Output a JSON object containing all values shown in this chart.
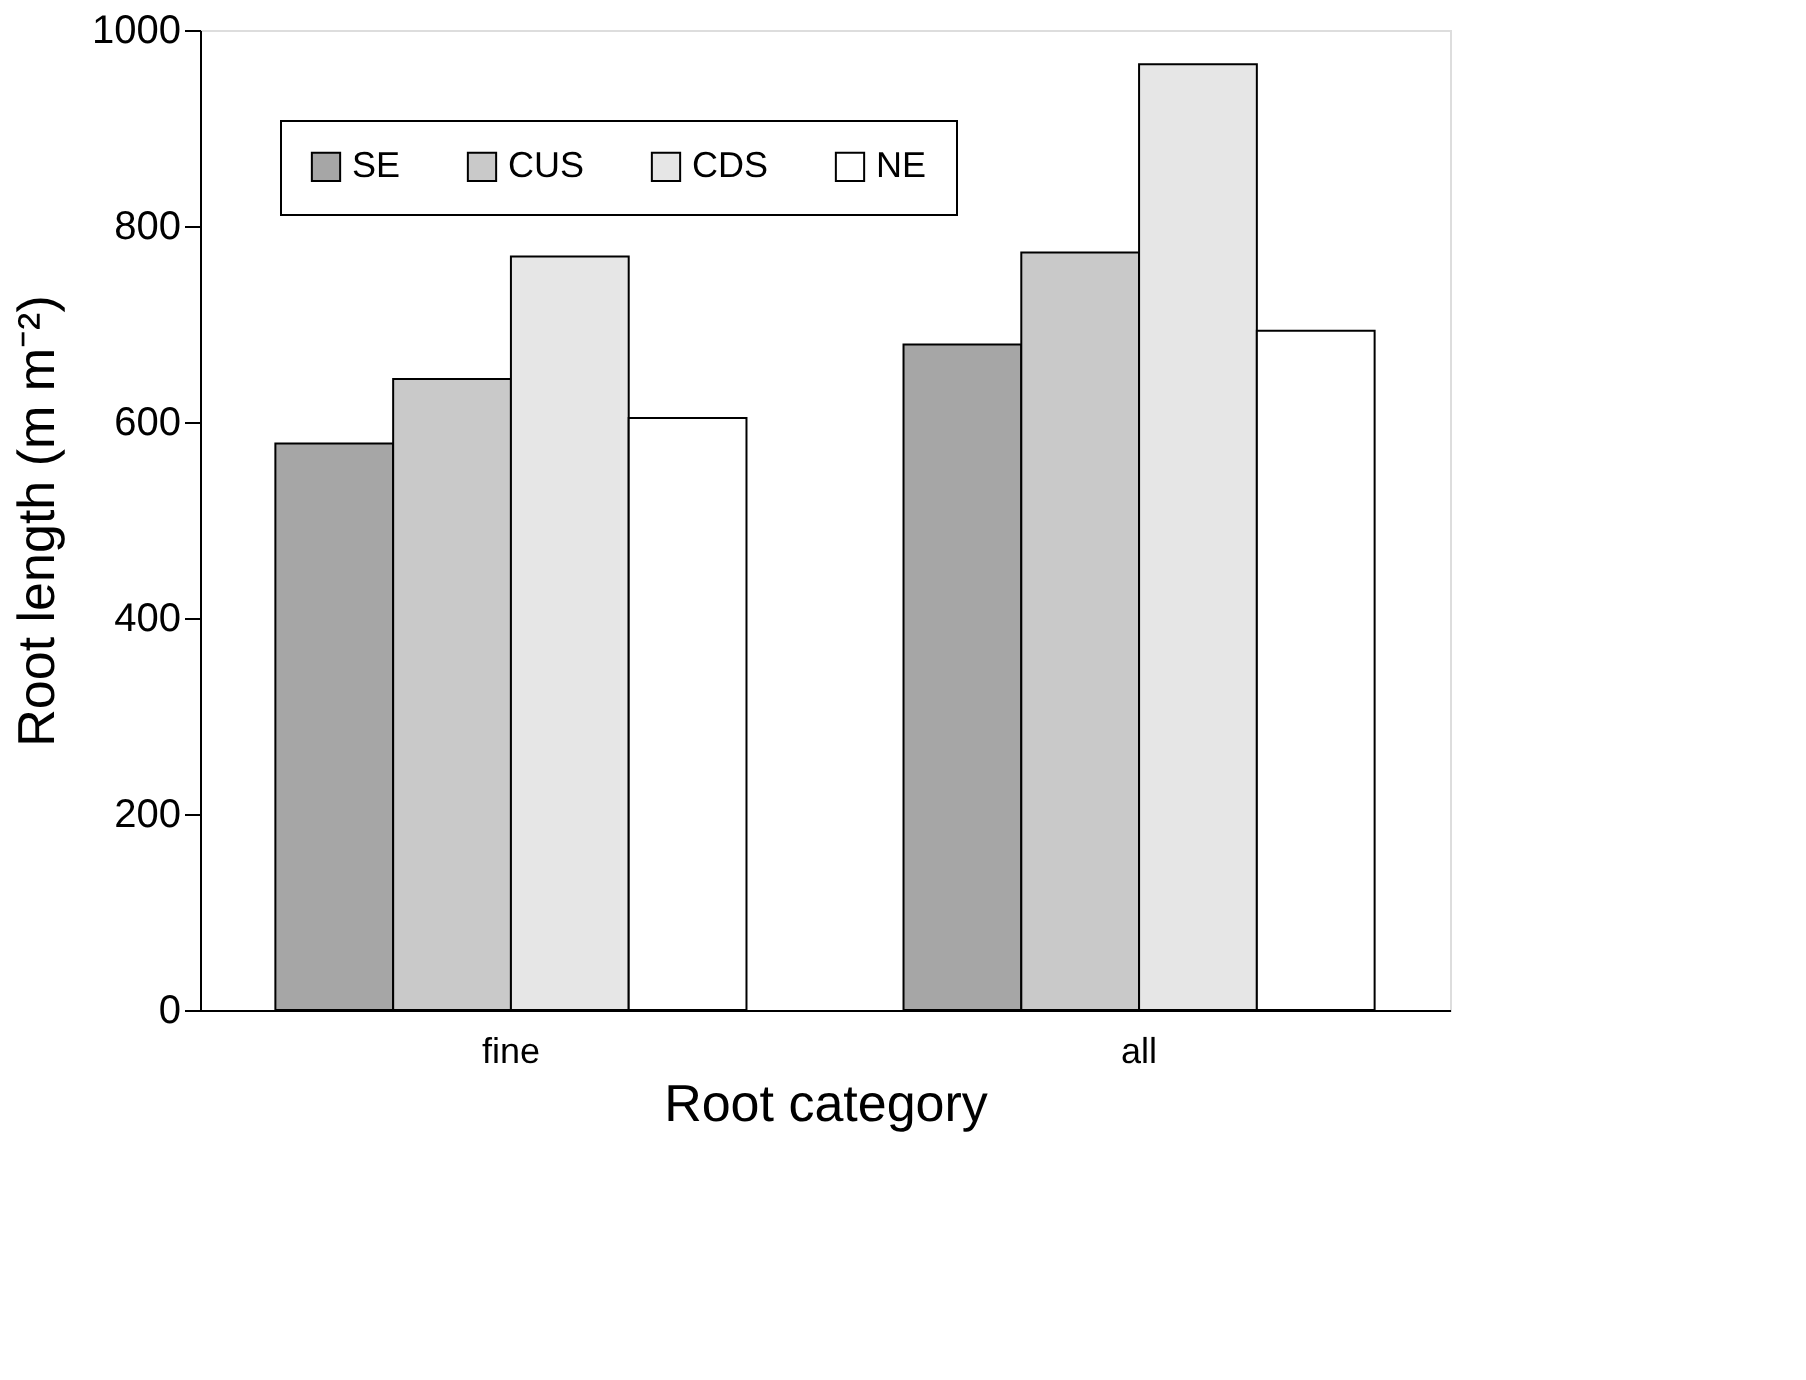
{
  "chart_data": {
    "type": "bar",
    "xlabel": "Root category",
    "ylabel": "Root length (m m⁻²)",
    "categories": [
      "fine",
      "all"
    ],
    "series": [
      {
        "name": "SE",
        "color": "#a6a6a6",
        "values": [
          578,
          679
        ]
      },
      {
        "name": "CUS",
        "color": "#c9c9c9",
        "values": [
          644,
          773
        ]
      },
      {
        "name": "CDS",
        "color": "#e6e6e6",
        "values": [
          769,
          965
        ]
      },
      {
        "name": "NE",
        "color": "#ffffff",
        "values": [
          604,
          693
        ]
      }
    ],
    "ylim": [
      0,
      1000
    ],
    "yticks": [
      0,
      200,
      400,
      600,
      800,
      1000
    ],
    "grid": false,
    "legend": "top left"
  }
}
